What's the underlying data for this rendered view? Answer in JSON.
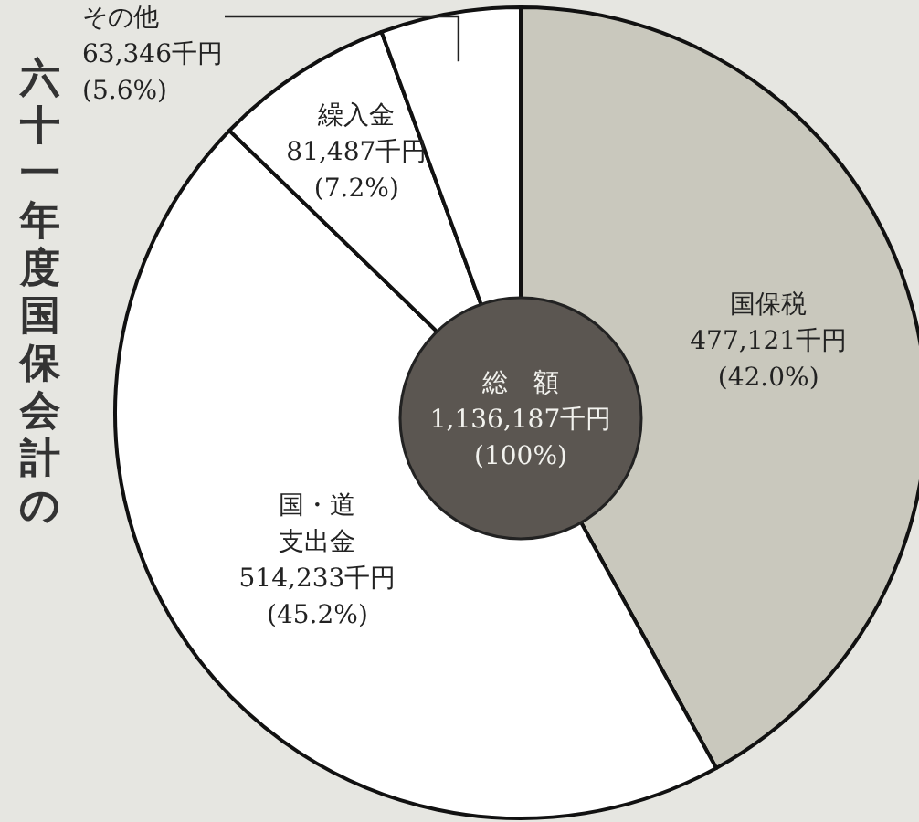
{
  "chart_data": {
    "type": "pie",
    "title": "六十一年度国保会計の",
    "categories": [
      "国保税",
      "国・道支出金",
      "繰入金",
      "その他"
    ],
    "values": [
      477121,
      514233,
      81487,
      63346
    ],
    "colors": [
      "#c9c8bd",
      "#ffffff",
      "#ffffff",
      "#ffffff"
    ],
    "value_labels": [
      "477,121千円\n(42.0%)",
      "514,233千円\n(45.2%)",
      "81,487千円\n(7.2%)",
      "63,346千円\n(5.6%)"
    ],
    "annotations": [
      "総　額\n1,136,187千円\n(100%)"
    ]
  }
}
